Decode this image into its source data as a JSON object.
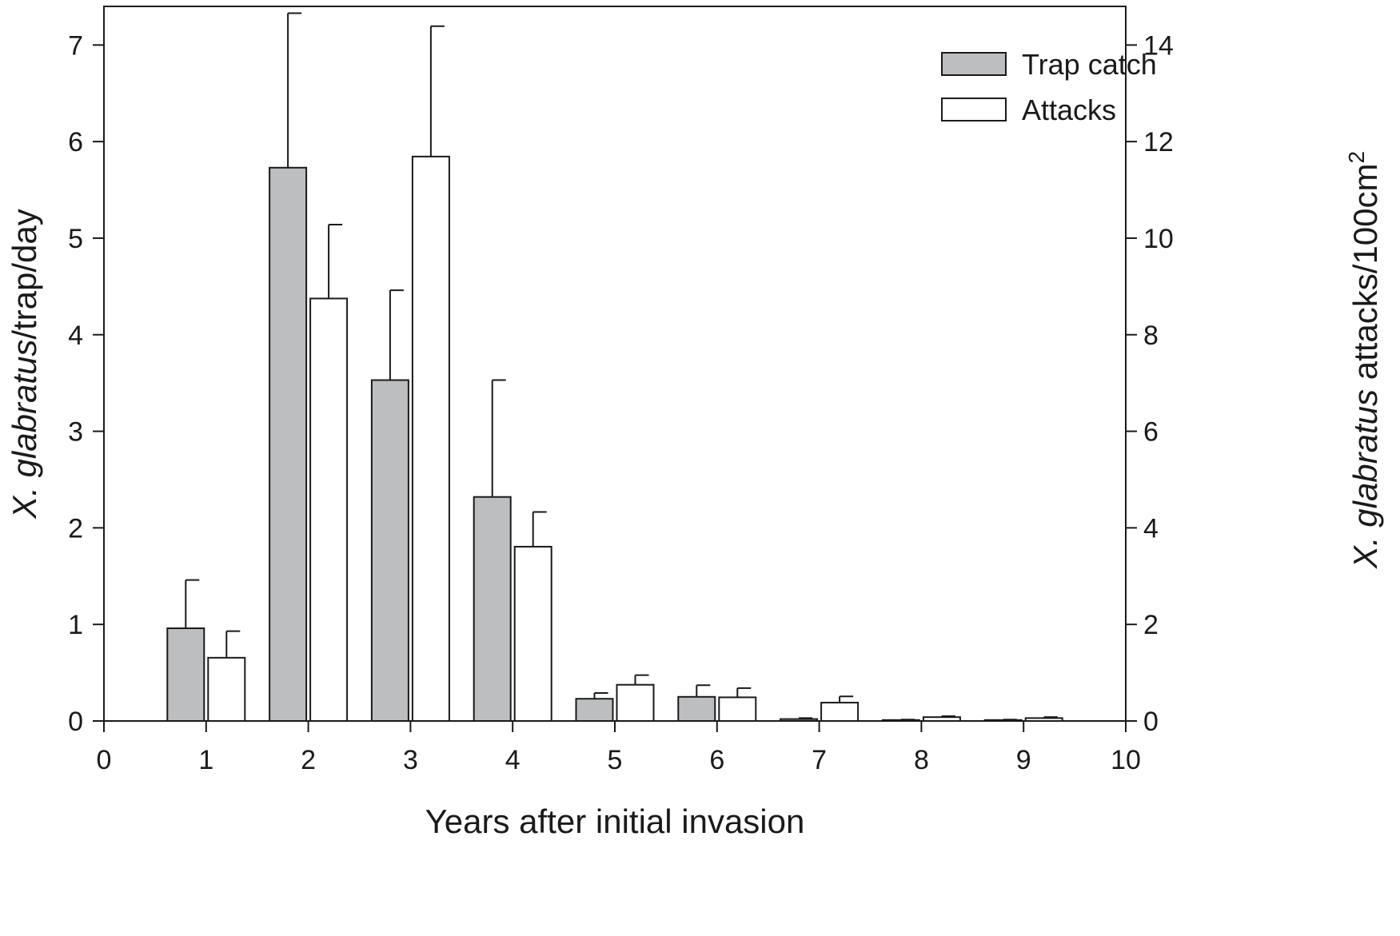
{
  "chart_data": {
    "type": "bar",
    "title": "",
    "x": [
      1,
      2,
      3,
      4,
      5,
      6,
      7,
      8,
      9
    ],
    "xlabel": "Years after initial invasion",
    "ylabel_italic": "X. glabratus",
    "ylabel_rest": "/trap/day",
    "y2label_italic": "X. glabratus",
    "y2label_rest": " attacks/100cm",
    "y2label_sup": "2",
    "xlim": [
      0,
      10
    ],
    "ylim": [
      0,
      7.4
    ],
    "y2lim": [
      0,
      14.8
    ],
    "xticks": [
      "0",
      "1",
      "2",
      "3",
      "4",
      "5",
      "6",
      "7",
      "8",
      "9",
      "10"
    ],
    "yticks": [
      "0",
      "1",
      "2",
      "3",
      "4",
      "5",
      "6",
      "7"
    ],
    "y2ticks": [
      "0",
      "2",
      "4",
      "6",
      "8",
      "10",
      "12",
      "14"
    ],
    "grid": false,
    "legend_position": "top-right",
    "series": [
      {
        "name": "Trap catch",
        "axis": "left",
        "color": "#bdbec0",
        "values": [
          0.96,
          5.73,
          3.53,
          2.32,
          0.23,
          0.25,
          0.02,
          0.01,
          0.01
        ],
        "errors": [
          0.5,
          1.6,
          0.93,
          1.21,
          0.06,
          0.12,
          0.01,
          0.005,
          0.005
        ]
      },
      {
        "name": "Attacks",
        "axis": "right",
        "color": "#ffffff",
        "values": [
          1.31,
          8.75,
          11.69,
          3.61,
          0.75,
          0.49,
          0.38,
          0.08,
          0.06
        ],
        "errors": [
          0.55,
          1.53,
          2.7,
          0.72,
          0.2,
          0.19,
          0.13,
          0.02,
          0.02
        ]
      }
    ]
  }
}
